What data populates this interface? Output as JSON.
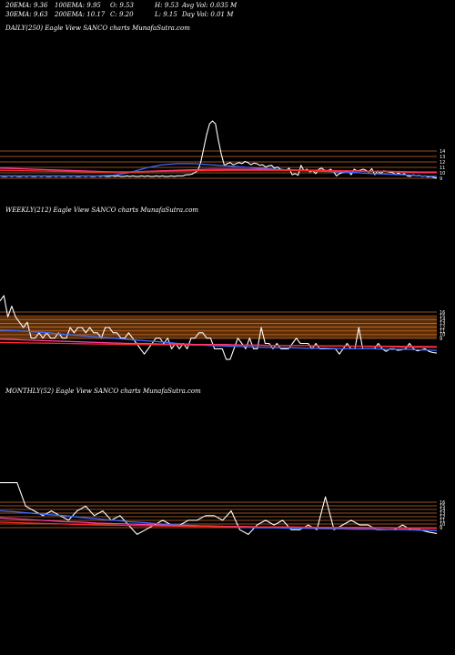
{
  "header": {
    "row1": [
      "20EMA: 9.36",
      "100EMA: 9.95",
      "O: 9.53",
      "H: 9.53",
      "Avg Vol: 0.035 M"
    ],
    "row2": [
      "30EMA: 9.63",
      "200EMA: 10.17",
      "C: 9.20",
      "L: 9.15",
      "Day Vol: 0.01 M"
    ]
  },
  "colors": {
    "background": "#000000",
    "price": "#ffffff",
    "ema_blue": "#3a6bff",
    "ema_pink": "#ff3fa0",
    "ema_red": "#ff2a2a",
    "level_line": "#c86a2a",
    "band": "#5a2e08"
  },
  "chart_data": [
    {
      "type": "line",
      "title": "DAILY(250) Eagle  View  SANCO charts MunafaSutra.com",
      "level_ticks": [
        "14",
        "13",
        "12",
        "11",
        "10",
        "9"
      ],
      "series": [
        {
          "role": "price",
          "values": [
            9.6,
            9.5,
            9.5,
            9.6,
            9.5,
            9.6,
            9.5,
            9.5,
            9.6,
            9.5,
            9.6,
            9.5,
            9.5,
            9.6,
            9.5,
            9.6,
            9.5,
            9.5,
            9.6,
            9.5,
            9.6,
            9.5,
            9.5,
            9.6,
            9.5,
            9.6,
            9.5,
            9.5,
            9.6,
            9.5,
            9.6,
            9.5,
            9.5,
            9.6,
            9.5,
            9.6,
            9.5,
            9.5,
            9.6,
            9.5,
            9.6,
            9.5,
            9.5,
            9.6,
            9.5,
            9.6,
            9.5,
            9.5,
            9.6,
            9.5,
            9.6,
            9.5,
            9.5,
            9.6,
            9.5,
            9.6,
            9.5,
            9.5,
            9.6,
            9.5,
            9.6,
            9.6,
            9.6,
            9.8,
            9.8,
            9.9,
            10.2,
            10.5,
            12,
            14.5,
            17,
            19,
            19.5,
            19,
            16,
            13.5,
            11.5,
            11.8,
            12,
            11.6,
            11.8,
            12,
            11.8,
            12.2,
            12,
            11.6,
            11.9,
            11.8,
            11.5,
            11.6,
            11.2,
            11.4,
            11.5,
            11,
            11.2,
            10.8,
            10.7,
            10.6,
            11,
            9.8,
            10,
            9.7,
            11.5,
            10.5,
            10.8,
            10.3,
            10.5,
            10,
            10.8,
            11,
            10.6,
            10.5,
            10.8,
            10.4,
            9.6,
            10,
            10.2,
            10.3,
            10.5,
            9.8,
            10.8,
            10.5,
            10.6,
            10.8,
            10.6,
            10.3,
            10.9,
            9.8,
            10.5,
            10,
            10.5,
            10.4,
            10.3,
            10.2,
            9.8,
            10.1,
            9.8,
            10,
            9.6,
            9.5,
            9.8,
            9.6,
            9.7,
            9.5,
            9.6,
            9.4,
            9.5,
            9.3,
            9.2
          ]
        },
        {
          "role": "ema_blue",
          "values": [
            9.6,
            9.6,
            9.6,
            9.6,
            9.6,
            9.6,
            9.6,
            9.7,
            10.2,
            11,
            11.6,
            11.8,
            11.8,
            11.6,
            11.4,
            11.2,
            11,
            10.8,
            10.6,
            10.5,
            10.4,
            10.3,
            10.2,
            10,
            9.9,
            9.8,
            9.6,
            9.5
          ]
        },
        {
          "role": "ema_pink",
          "values": [
            11,
            10.9,
            10.8,
            10.7,
            10.6,
            10.5,
            10.4,
            10.3,
            10.3,
            10.4,
            10.5,
            10.6,
            10.7,
            10.8,
            10.8,
            10.8,
            10.8,
            10.7,
            10.7,
            10.6,
            10.6,
            10.5,
            10.5,
            10.4,
            10.4,
            10.3,
            10.2,
            10.2
          ]
        },
        {
          "role": "ema_red",
          "values": [
            10.6,
            10.55,
            10.5,
            10.45,
            10.4,
            10.35,
            10.3,
            10.3,
            10.3,
            10.35,
            10.4,
            10.45,
            10.5,
            10.55,
            10.6,
            10.6,
            10.6,
            10.6,
            10.6,
            10.55,
            10.5,
            10.5,
            10.45,
            10.4,
            10.4,
            10.35,
            10.3,
            10.3
          ]
        }
      ]
    },
    {
      "type": "line",
      "title": "WEEKLY(212) Eagle  View  SANCO charts MunafaSutra.com",
      "level_ticks": [
        "16",
        "15",
        "14",
        "13",
        "12",
        "11",
        "10",
        "9"
      ],
      "series": [
        {
          "role": "price",
          "values": [
            19,
            20,
            16,
            18,
            16,
            15,
            14,
            15,
            12,
            12,
            13,
            12,
            13,
            12,
            12,
            13,
            12,
            12,
            14,
            13,
            14,
            14,
            13,
            14,
            13,
            13,
            12,
            14,
            14,
            13,
            13,
            12,
            12,
            13,
            12,
            11,
            10,
            9,
            10,
            11,
            12,
            12,
            11,
            12,
            10,
            11,
            10,
            11,
            10,
            12,
            12,
            13,
            13,
            12,
            12,
            10,
            10,
            10,
            8,
            8,
            10,
            12,
            11,
            10,
            12,
            10,
            10,
            14,
            11,
            11,
            10,
            11,
            10,
            10,
            10,
            11,
            12,
            11,
            11,
            11,
            10,
            11,
            10,
            10,
            10,
            10,
            10,
            9,
            10,
            11,
            10,
            10,
            14,
            10,
            10,
            10,
            10,
            11,
            10,
            9.5,
            10,
            10,
            9.7,
            9.8,
            10,
            11,
            10,
            9.6,
            9.8,
            10,
            9.5,
            9.3,
            9.2
          ]
        },
        {
          "role": "ema_blue",
          "values": [
            13.5,
            13.4,
            13.2,
            13,
            12.7,
            12.5,
            12.2,
            12,
            11.7,
            11.5,
            11.3,
            11,
            10.8,
            10.6,
            10.5,
            10.4,
            10.3,
            10.2,
            10.2,
            10.1,
            10.1,
            10,
            10,
            10,
            9.9,
            9.9,
            9.8,
            9.7
          ]
        },
        {
          "role": "ema_pink",
          "values": [
            11.8,
            11.7,
            11.6,
            11.5,
            11.4,
            11.3,
            11.2,
            11.1,
            11,
            11,
            10.9,
            10.9,
            10.8,
            10.8,
            10.8,
            10.7,
            10.7,
            10.6,
            10.6,
            10.6,
            10.5,
            10.5,
            10.5,
            10.4,
            10.4,
            10.3,
            10.3,
            10.3
          ]
        },
        {
          "role": "ema_red",
          "values": [
            11.2,
            11.15,
            11.1,
            11.05,
            11,
            10.95,
            10.9,
            10.85,
            10.8,
            10.8,
            10.75,
            10.75,
            10.7,
            10.7,
            10.7,
            10.65,
            10.65,
            10.6,
            10.6,
            10.6,
            10.55,
            10.55,
            10.5,
            10.5,
            10.5,
            10.45,
            10.45,
            10.4
          ]
        }
      ]
    },
    {
      "type": "line",
      "title": "MONTHLY(52) Eagle  View  SANCO charts MunafaSutra.com",
      "level_ticks": [
        "16",
        "15",
        "14",
        "13",
        "12",
        "11",
        "10",
        "9"
      ],
      "series": [
        {
          "role": "price",
          "values": [
            20,
            20,
            20,
            15,
            14,
            13,
            14,
            13,
            12,
            14,
            15,
            13,
            14,
            12,
            13,
            11,
            9,
            10,
            11,
            12,
            11,
            11,
            12,
            12,
            13,
            13,
            12,
            14,
            10,
            9,
            11,
            12,
            11,
            12,
            10,
            10,
            11,
            10,
            17,
            10,
            11,
            12,
            11,
            11,
            10,
            10,
            10,
            11,
            10,
            10,
            9.5,
            9.2
          ]
        },
        {
          "role": "ema_blue",
          "values": [
            14,
            13.8,
            13.5,
            13.2,
            13,
            12.6,
            12.3,
            12,
            11.7,
            11.5,
            11.2,
            11,
            10.9,
            10.7,
            10.6,
            10.5,
            10.4,
            10.4,
            10.3,
            10.3,
            10.2,
            10.2,
            10.1,
            10.1,
            10,
            10,
            9.9,
            9.8
          ]
        },
        {
          "role": "ema_pink",
          "values": [
            12.5,
            12.3,
            12.1,
            11.9,
            11.7,
            11.6,
            11.4,
            11.3,
            11.2,
            11.1,
            11,
            10.9,
            10.8,
            10.8,
            10.7,
            10.7,
            10.6,
            10.6,
            10.6,
            10.5,
            10.5,
            10.5,
            10.4,
            10.4,
            10.4,
            10.3,
            10.3,
            10.3
          ]
        },
        {
          "role": "ema_red",
          "values": [
            11.6,
            11.5,
            11.4,
            11.3,
            11.2,
            11.1,
            11,
            10.95,
            10.9,
            10.85,
            10.8,
            10.75,
            10.7,
            10.7,
            10.65,
            10.65,
            10.6,
            10.6,
            10.55,
            10.55,
            10.5,
            10.5,
            10.5,
            10.45,
            10.45,
            10.4,
            10.4,
            10.4
          ]
        }
      ]
    }
  ]
}
